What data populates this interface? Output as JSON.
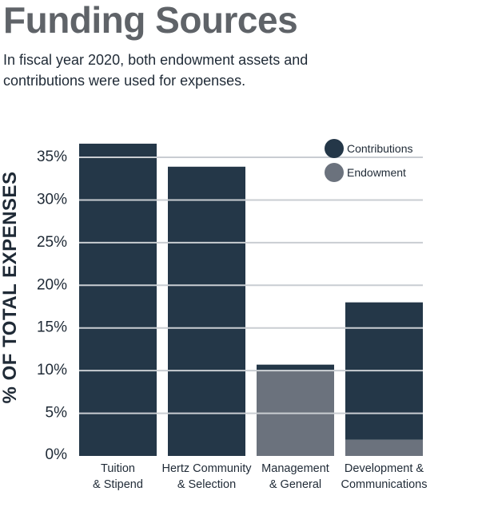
{
  "header": {
    "title": "Funding Sources",
    "subtitle_line1": "In fiscal year 2020, both endowment assets and",
    "subtitle_line2": "contributions were used for expenses."
  },
  "chart_data": {
    "type": "bar",
    "stacked": true,
    "title": "Funding Sources",
    "ylabel": "% OF TOTAL EXPENSES",
    "xlabel": "",
    "ylim": [
      0,
      36.6
    ],
    "yticks": [
      0,
      5,
      10,
      15,
      20,
      25,
      30,
      35
    ],
    "ytick_labels": [
      "0%",
      "5%",
      "10%",
      "15%",
      "20%",
      "25%",
      "30%",
      "35%"
    ],
    "categories": [
      [
        "Tuition",
        "& Stipend"
      ],
      [
        "Hertz Community",
        "& Selection"
      ],
      [
        "Management",
        "& General"
      ],
      [
        "Development &",
        "Communications"
      ]
    ],
    "series": [
      {
        "name": "Endowment",
        "color": "#6b727d",
        "values": [
          0,
          0,
          10.1,
          1.9
        ]
      },
      {
        "name": "Contributions",
        "color": "#243748",
        "values": [
          36.6,
          33.9,
          0.6,
          16.1
        ]
      }
    ],
    "gridlines": true,
    "legend_position": "top-right",
    "legend_order": [
      "Contributions",
      "Endowment"
    ]
  }
}
